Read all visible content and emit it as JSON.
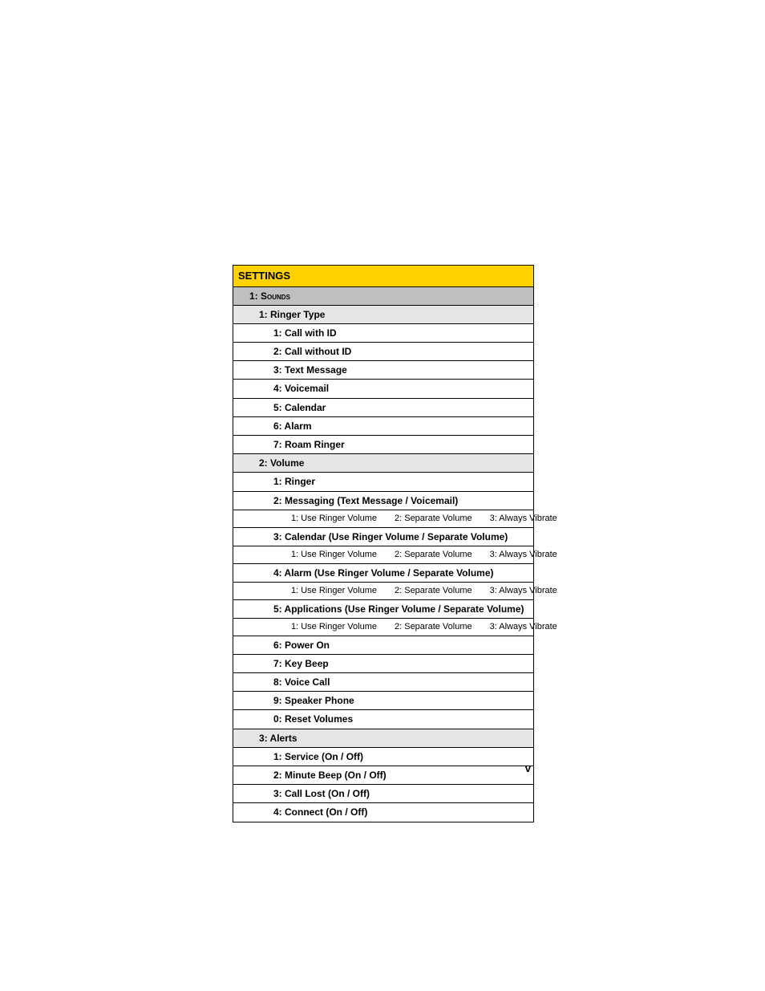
{
  "header": "SETTINGS",
  "page_number": "v",
  "colors": {
    "header_bg": "#ffd200",
    "level1_bg": "#bfbfbf",
    "level2_bg": "#e6e6e6",
    "level3_bg": "#ffffff",
    "border": "#000000"
  },
  "rows": [
    {
      "type": "level1",
      "text": "1: Sounds"
    },
    {
      "type": "level2",
      "text": "1: Ringer Type"
    },
    {
      "type": "level3",
      "text": "1: Call with ID"
    },
    {
      "type": "level3",
      "text": "2: Call without ID"
    },
    {
      "type": "level3",
      "text": "3: Text Message"
    },
    {
      "type": "level3",
      "text": "4: Voicemail"
    },
    {
      "type": "level3",
      "text": "5: Calendar"
    },
    {
      "type": "level3",
      "text": "6: Alarm"
    },
    {
      "type": "level3",
      "text": "7: Roam Ringer"
    },
    {
      "type": "level2",
      "text": "2: Volume"
    },
    {
      "type": "level3",
      "text": "1: Ringer"
    },
    {
      "type": "level3",
      "text": "2: Messaging (Text Message / Voicemail)"
    },
    {
      "type": "level4",
      "options": [
        "1: Use Ringer Volume",
        "2: Separate Volume",
        "3: Always Vibrate"
      ]
    },
    {
      "type": "level3",
      "text": "3: Calendar (Use Ringer Volume / Separate Volume)"
    },
    {
      "type": "level4",
      "options": [
        "1: Use Ringer Volume",
        "2: Separate Volume",
        "3: Always Vibrate"
      ]
    },
    {
      "type": "level3",
      "text": "4: Alarm (Use Ringer Volume / Separate Volume)"
    },
    {
      "type": "level4",
      "options": [
        "1: Use Ringer Volume",
        "2: Separate Volume",
        "3: Always Vibrate"
      ]
    },
    {
      "type": "level3",
      "text": "5: Applications (Use Ringer Volume / Separate Volume)"
    },
    {
      "type": "level4",
      "options": [
        "1: Use Ringer Volume",
        "2: Separate Volume",
        "3: Always Vibrate"
      ]
    },
    {
      "type": "level3",
      "text": "6: Power On"
    },
    {
      "type": "level3",
      "text": "7: Key Beep"
    },
    {
      "type": "level3",
      "text": "8: Voice Call"
    },
    {
      "type": "level3",
      "text": "9: Speaker Phone"
    },
    {
      "type": "level3",
      "text": "0: Reset Volumes"
    },
    {
      "type": "level2",
      "text": "3: Alerts"
    },
    {
      "type": "level3",
      "text": "1: Service (On / Off)"
    },
    {
      "type": "level3",
      "text": "2: Minute Beep (On / Off)"
    },
    {
      "type": "level3",
      "text": "3: Call Lost (On / Off)"
    },
    {
      "type": "level3",
      "text": "4: Connect (On / Off)"
    }
  ]
}
